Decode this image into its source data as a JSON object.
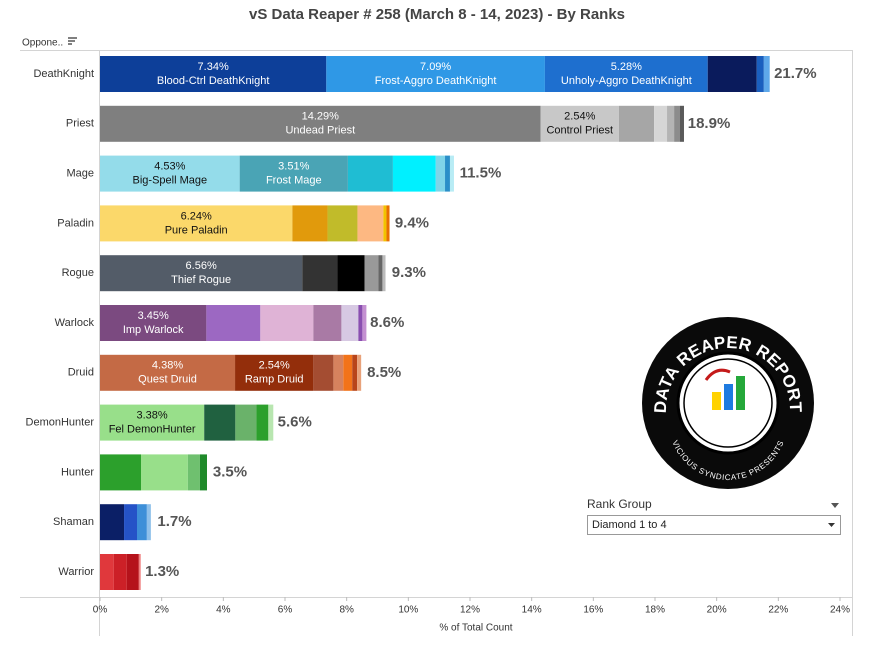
{
  "chart_data": {
    "type": "stacked-bar",
    "title": "vS Data Reaper #  258 (March 8 - 14, 2023) - By Ranks",
    "row_header": "Oppone..",
    "x_label": "% of Total Count",
    "xlim": [
      0,
      24
    ],
    "xticks": [
      {
        "value": 0,
        "label": "0%"
      },
      {
        "value": 2,
        "label": "2%"
      },
      {
        "value": 4,
        "label": "4%"
      },
      {
        "value": 6,
        "label": "6%"
      },
      {
        "value": 8,
        "label": "8%"
      },
      {
        "value": 10,
        "label": "10%"
      },
      {
        "value": 12,
        "label": "12%"
      },
      {
        "value": 14,
        "label": "14%"
      },
      {
        "value": 16,
        "label": "16%"
      },
      {
        "value": 18,
        "label": "18%"
      },
      {
        "value": 20,
        "label": "20%"
      },
      {
        "value": 22,
        "label": "22%"
      },
      {
        "value": 24,
        "label": "24%"
      }
    ],
    "rows": [
      {
        "category": "DeathKnight",
        "total": 21.7,
        "total_label": "21.7%",
        "segments": [
          {
            "name": "Blood-Ctrl DeathKnight",
            "value": 7.34,
            "value_label": "7.34%",
            "color": "#0d3f99"
          },
          {
            "name": "Frost-Aggro DeathKnight",
            "value": 7.09,
            "value_label": "7.09%",
            "color": "#2f98e6"
          },
          {
            "name": "Unholy-Aggro DeathKnight",
            "value": 5.28,
            "value_label": "5.28%",
            "color": "#1e6fcf"
          },
          {
            "value": 1.59,
            "color": "#0a1b5c"
          },
          {
            "value": 0.23,
            "color": "#1a5fbf"
          },
          {
            "value": 0.19,
            "color": "#5ea8ea"
          }
        ]
      },
      {
        "category": "Priest",
        "total": 18.9,
        "total_label": "18.9%",
        "segments": [
          {
            "name": "Undead Priest",
            "value": 14.29,
            "value_label": "14.29%",
            "color": "#7f7f7f"
          },
          {
            "name": "Control Priest",
            "value": 2.54,
            "value_label": "2.54%",
            "color": "#c8c8c8"
          },
          {
            "value": 1.14,
            "color": "#a6a6a6"
          },
          {
            "value": 0.42,
            "color": "#d6d6d6"
          },
          {
            "value": 0.23,
            "color": "#b4b4b4"
          },
          {
            "value": 0.19,
            "color": "#8c8c8c"
          },
          {
            "value": 0.13,
            "color": "#5a5a5a"
          }
        ]
      },
      {
        "category": "Mage",
        "total": 11.5,
        "total_label": "11.5%",
        "segments": [
          {
            "name": "Big-Spell Mage",
            "value": 4.53,
            "value_label": "4.53%",
            "color": "#94dcea"
          },
          {
            "name": "Frost Mage",
            "value": 3.51,
            "value_label": "3.51%",
            "color": "#4aa4b5"
          },
          {
            "value": 1.46,
            "color": "#1fbdd3"
          },
          {
            "value": 1.39,
            "color": "#00f0ff"
          },
          {
            "value": 0.3,
            "color": "#7fd4e8"
          },
          {
            "value": 0.16,
            "color": "#2a8fc8"
          },
          {
            "value": 0.13,
            "color": "#b8ecf5"
          }
        ]
      },
      {
        "category": "Paladin",
        "total": 9.4,
        "total_label": "9.4%",
        "segments": [
          {
            "name": "Pure Paladin",
            "value": 6.24,
            "value_label": "6.24%",
            "color": "#fbd86a"
          },
          {
            "value": 1.14,
            "color": "#e19a0c"
          },
          {
            "value": 0.97,
            "color": "#c1bb2a"
          },
          {
            "value": 0.84,
            "color": "#fdb882"
          },
          {
            "value": 0.1,
            "color": "#f2c200"
          },
          {
            "value": 0.1,
            "color": "#e86f00"
          }
        ]
      },
      {
        "category": "Rogue",
        "total": 9.3,
        "total_label": "9.3%",
        "segments": [
          {
            "name": "Thief Rogue",
            "value": 6.56,
            "value_label": "6.56%",
            "color": "#535c68"
          },
          {
            "value": 1.14,
            "color": "#333333"
          },
          {
            "value": 0.88,
            "color": "#000000"
          },
          {
            "value": 0.45,
            "color": "#999999"
          },
          {
            "value": 0.13,
            "color": "#666666"
          },
          {
            "value": 0.1,
            "color": "#bbbbbb"
          }
        ]
      },
      {
        "category": "Warlock",
        "total": 8.6,
        "total_label": "8.6%",
        "segments": [
          {
            "name": "Imp Warlock",
            "value": 3.45,
            "value_label": "3.45%",
            "color": "#7b4a80"
          },
          {
            "value": 1.75,
            "color": "#9c68c2"
          },
          {
            "value": 1.72,
            "color": "#dfb3d6"
          },
          {
            "value": 0.91,
            "color": "#a97aa5"
          },
          {
            "value": 0.55,
            "color": "#d7c9e3"
          },
          {
            "value": 0.13,
            "color": "#8a4fb0"
          },
          {
            "value": 0.13,
            "color": "#c490d1"
          }
        ]
      },
      {
        "category": "Druid",
        "total": 8.5,
        "total_label": "8.5%",
        "segments": [
          {
            "name": "Quest Druid",
            "value": 4.38,
            "value_label": "4.38%",
            "color": "#c46a45"
          },
          {
            "name": "Ramp Druid",
            "value": 2.54,
            "value_label": "2.54%",
            "color": "#932e0b"
          },
          {
            "value": 0.65,
            "color": "#a44d32"
          },
          {
            "value": 0.32,
            "color": "#d6825e"
          },
          {
            "value": 0.29,
            "color": "#f27319"
          },
          {
            "value": 0.16,
            "color": "#b8451a"
          },
          {
            "value": 0.13,
            "color": "#e8a27a"
          }
        ]
      },
      {
        "category": "DemonHunter",
        "total": 5.6,
        "total_label": "5.6%",
        "segments": [
          {
            "name": "Fel DemonHunter",
            "value": 3.38,
            "value_label": "3.38%",
            "color": "#98df8a"
          },
          {
            "value": 1.01,
            "color": "#206140"
          },
          {
            "value": 0.68,
            "color": "#6ab26a"
          },
          {
            "value": 0.39,
            "color": "#2ca02c"
          },
          {
            "value": 0.16,
            "color": "#b8e6b0"
          }
        ]
      },
      {
        "category": "Hunter",
        "total": 3.5,
        "total_label": "3.5%",
        "segments": [
          {
            "value": 1.33,
            "color": "#2ca02c"
          },
          {
            "value": 1.52,
            "color": "#98df8a"
          },
          {
            "value": 0.39,
            "color": "#6fc06f"
          },
          {
            "value": 0.23,
            "color": "#1f8a2a"
          }
        ]
      },
      {
        "category": "Shaman",
        "total": 1.7,
        "total_label": "1.7%",
        "segments": [
          {
            "value": 0.78,
            "color": "#0b1f66"
          },
          {
            "value": 0.42,
            "color": "#2553c7"
          },
          {
            "value": 0.32,
            "color": "#3d8fd8"
          },
          {
            "value": 0.13,
            "color": "#8fc0ea"
          }
        ]
      },
      {
        "category": "Warrior",
        "total": 1.3,
        "total_label": "1.3%",
        "segments": [
          {
            "value": 0.45,
            "color": "#e0383c"
          },
          {
            "value": 0.42,
            "color": "#cc2027"
          },
          {
            "value": 0.39,
            "color": "#b5121b"
          },
          {
            "value": 0.06,
            "color": "#f08080"
          }
        ]
      }
    ]
  },
  "filter": {
    "label": "Rank Group",
    "selected": "Diamond 1 to 4"
  },
  "logo": {
    "title": "DATA REAPER REPORT",
    "subtitle": "VICIOUS SYNDICATE PRESENTS"
  }
}
